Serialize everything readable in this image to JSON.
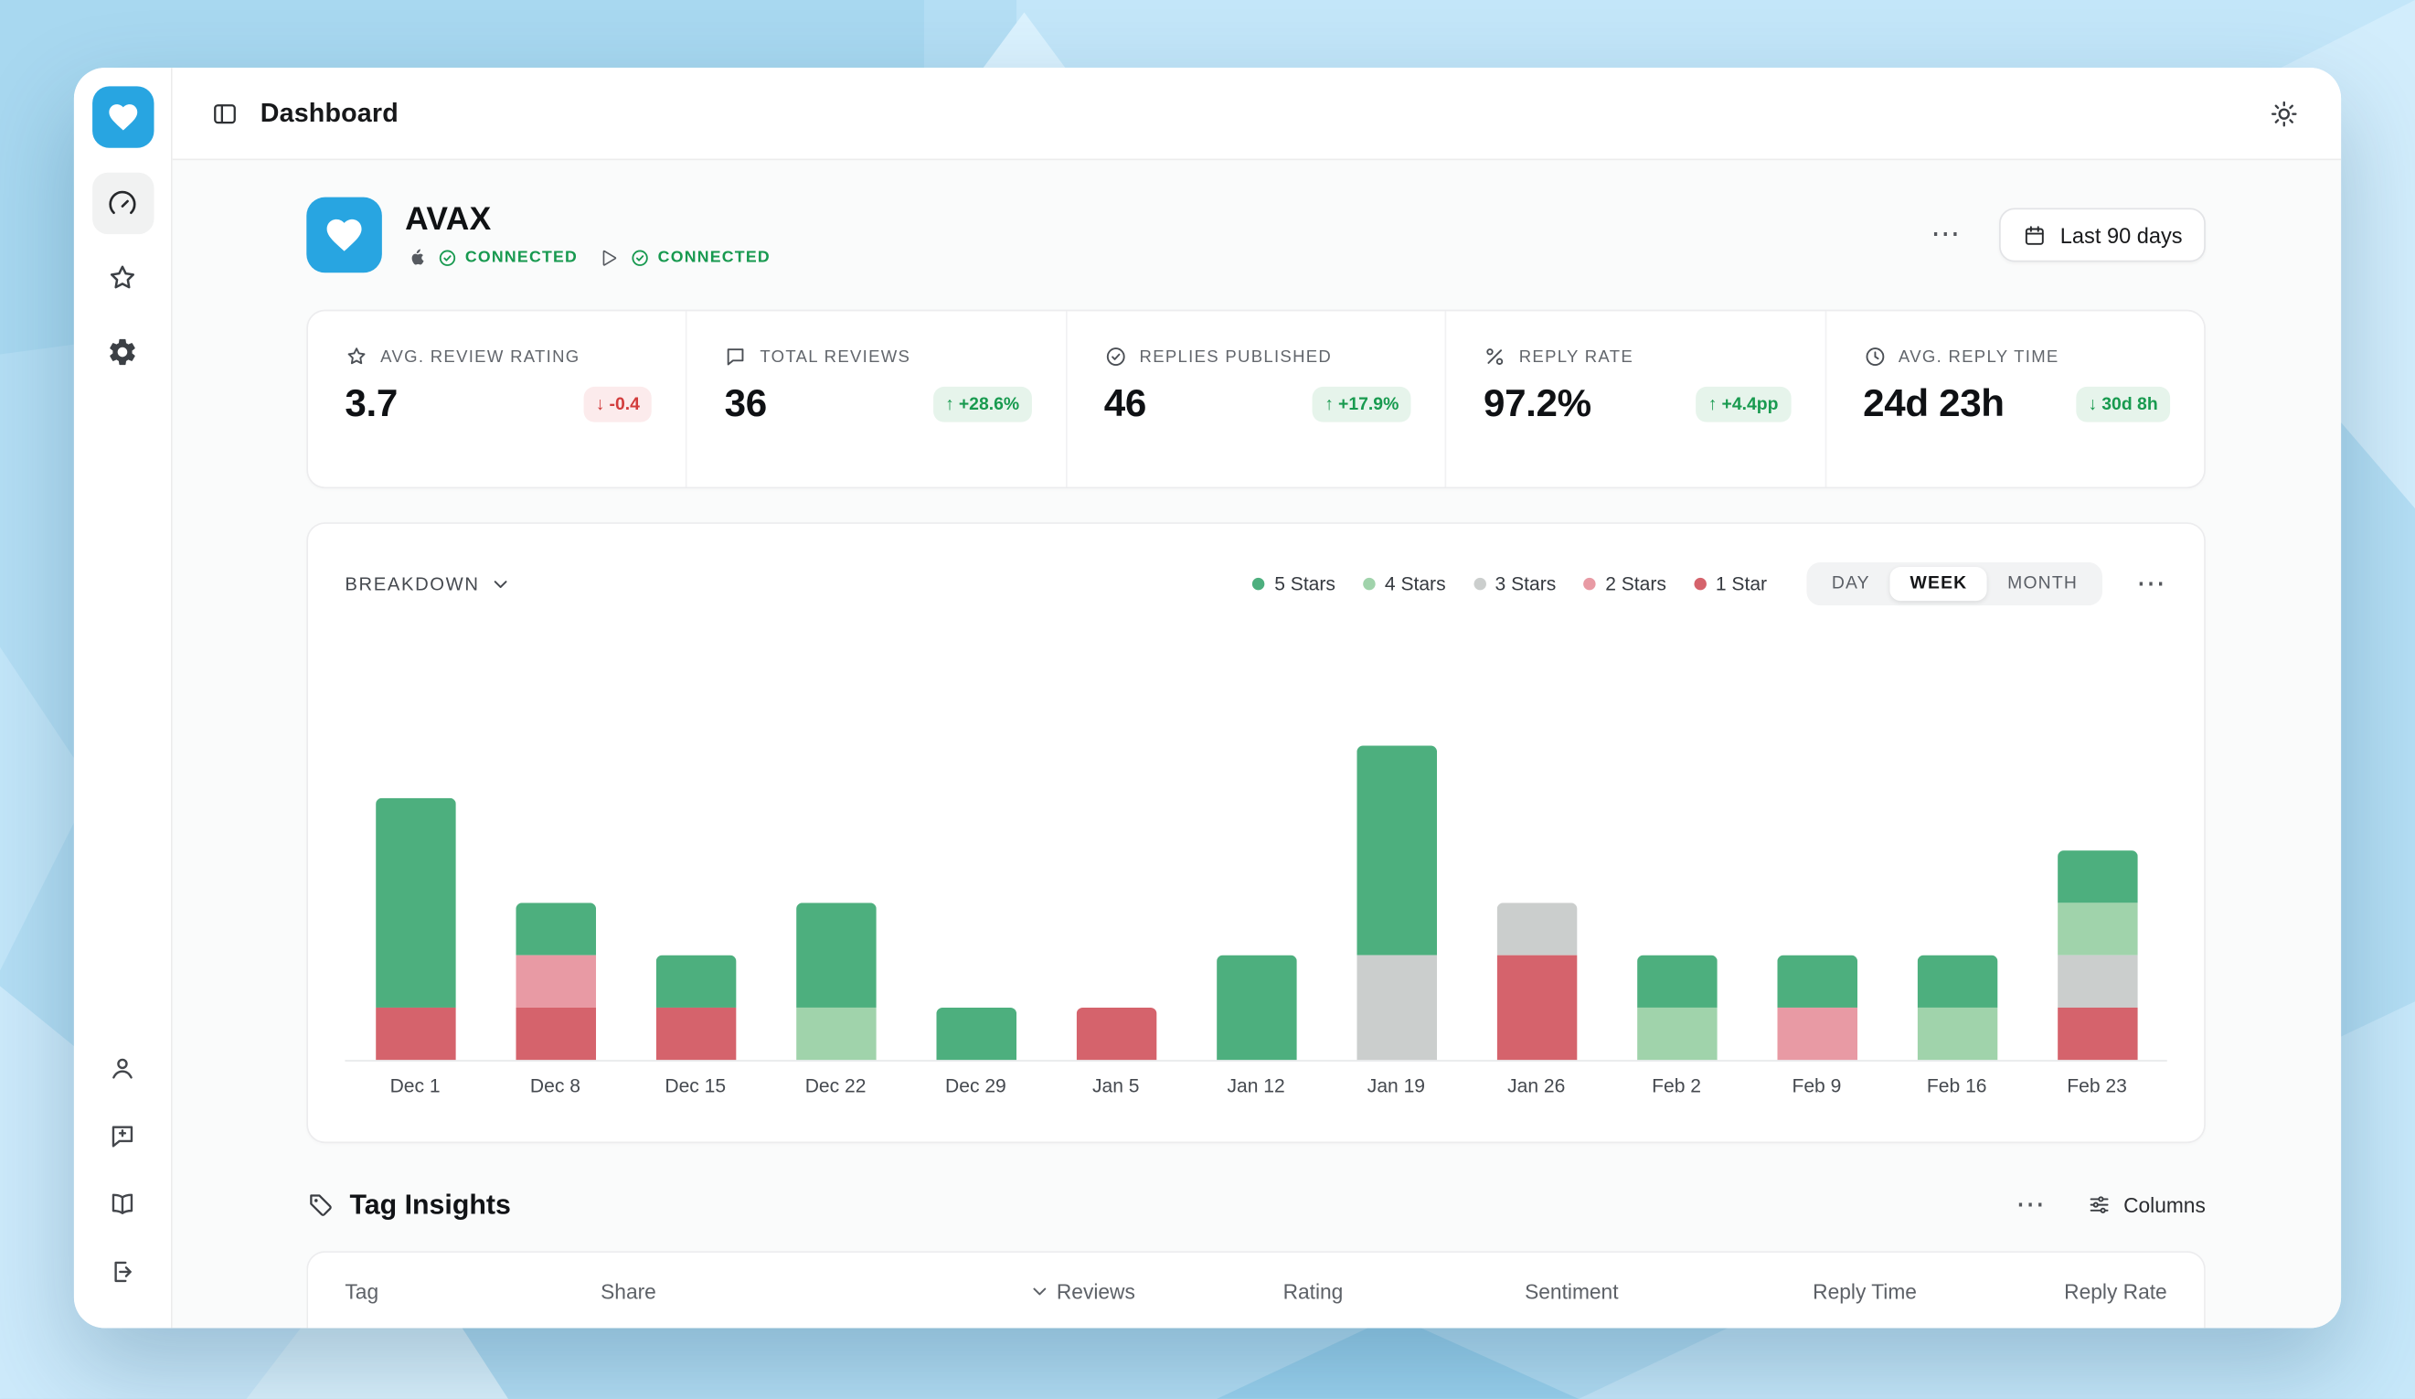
{
  "icons": {
    "ellipsis": "⋯"
  },
  "header": {
    "title": "Dashboard"
  },
  "brand": {
    "name": "AVAX",
    "connections": [
      {
        "platform": "app-store",
        "status": "CONNECTED"
      },
      {
        "platform": "google-play",
        "status": "CONNECTED"
      }
    ],
    "date_range_label": "Last 90 days"
  },
  "kpis": [
    {
      "label": "AVG. REVIEW RATING",
      "value": "3.7",
      "delta_arrow": "↓",
      "delta_text": "-0.4",
      "tone": "negative"
    },
    {
      "label": "TOTAL REVIEWS",
      "value": "36",
      "delta_arrow": "↑",
      "delta_text": "+28.6%",
      "tone": "positive"
    },
    {
      "label": "REPLIES PUBLISHED",
      "value": "46",
      "delta_arrow": "↑",
      "delta_text": "+17.9%",
      "tone": "positive"
    },
    {
      "label": "REPLY RATE",
      "value": "97.2%",
      "delta_arrow": "↑",
      "delta_text": "+4.4pp",
      "tone": "positive"
    },
    {
      "label": "AVG. REPLY TIME",
      "value": "24d 23h",
      "delta_arrow": "↓",
      "delta_text": "30d 8h",
      "tone": "positive"
    }
  ],
  "chart_controls": {
    "breakdown_label": "BREAKDOWN",
    "granularities": [
      "DAY",
      "WEEK",
      "MONTH"
    ],
    "active_granularity": "WEEK"
  },
  "chart_data": {
    "type": "bar",
    "stacked": true,
    "title": "Review ratings breakdown by week",
    "categories": [
      "Dec 1",
      "Dec 8",
      "Dec 15",
      "Dec 22",
      "Dec 29",
      "Jan 5",
      "Jan 12",
      "Jan 19",
      "Jan 26",
      "Feb 2",
      "Feb 9",
      "Feb 16",
      "Feb 23"
    ],
    "series": [
      {
        "name": "1 Star",
        "color": "#d5636c",
        "values": [
          1,
          1,
          1,
          0,
          0,
          1,
          0,
          0,
          2,
          0,
          0,
          0,
          1
        ]
      },
      {
        "name": "2 Stars",
        "color": "#e89aa4",
        "values": [
          0,
          1,
          0,
          0,
          0,
          0,
          0,
          0,
          0,
          0,
          1,
          0,
          0
        ]
      },
      {
        "name": "3 Stars",
        "color": "#cbcecd",
        "values": [
          0,
          0,
          0,
          0,
          0,
          0,
          0,
          2,
          1,
          0,
          0,
          0,
          1
        ]
      },
      {
        "name": "4 Stars",
        "color": "#a0d3ab",
        "values": [
          0,
          0,
          0,
          1,
          0,
          0,
          0,
          0,
          0,
          1,
          0,
          1,
          1
        ]
      },
      {
        "name": "5 Stars",
        "color": "#4daf7e",
        "values": [
          4,
          1,
          1,
          2,
          1,
          0,
          2,
          4,
          0,
          1,
          1,
          1,
          1
        ]
      }
    ],
    "legend_order": [
      "5 Stars",
      "4 Stars",
      "3 Stars",
      "2 Stars",
      "1 Star"
    ],
    "totals_per_category": [
      5,
      3,
      2,
      3,
      1,
      1,
      2,
      6,
      3,
      2,
      2,
      2,
      4
    ],
    "y_max": 6,
    "grid": false,
    "legend_position": "top-right"
  },
  "tag_insights": {
    "title": "Tag Insights",
    "columns_button_label": "Columns",
    "table_headers": [
      "Tag",
      "Share",
      "Reviews",
      "Rating",
      "Sentiment",
      "Reply Time",
      "Reply Rate"
    ],
    "sorted_column": "Reviews"
  }
}
